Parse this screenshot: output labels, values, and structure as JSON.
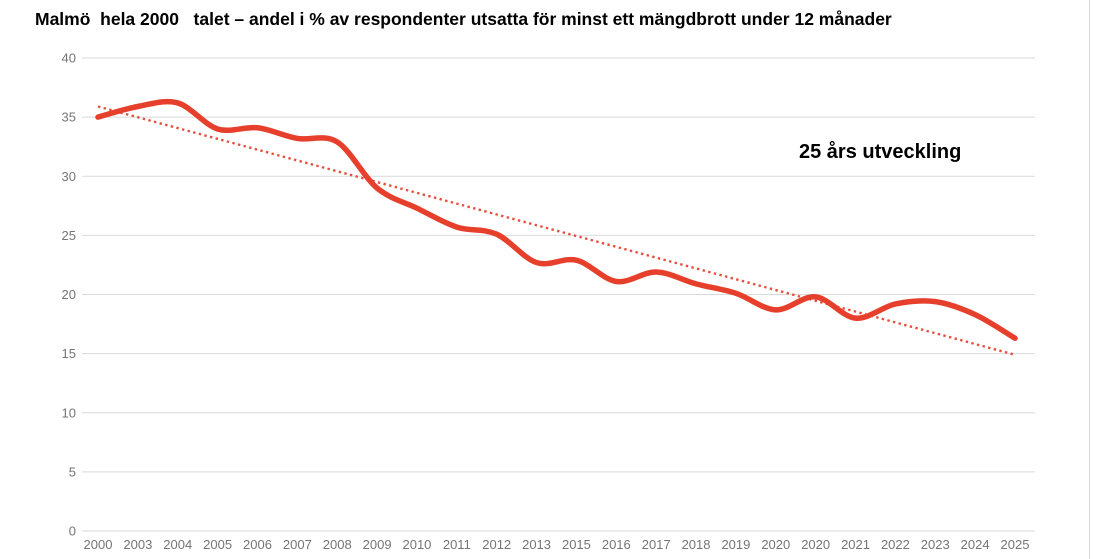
{
  "page": {
    "title": "Malmö  hela 2000   talet – andel i % av respondenter utsatta för minst ett mängdbrott under 12 månader"
  },
  "annotation": {
    "label": "25 års utveckling"
  },
  "colors": {
    "series": "#e6402d",
    "trend": "#e6402d",
    "grid": "#d9d9d9",
    "axis_text": "#757575",
    "title_text": "#000000"
  },
  "chart_data": {
    "type": "line",
    "title": "Malmö  hela 2000   talet – andel i % av respondenter utsatta för minst ett mängdbrott under 12 månader",
    "annotation": "25 års utveckling",
    "xlabel": "",
    "ylabel": "",
    "ylim": [
      0,
      40
    ],
    "yticks": [
      0,
      5,
      10,
      15,
      20,
      25,
      30,
      35,
      40
    ],
    "grid": true,
    "legend_position": "none",
    "categories": [
      "2000",
      "2003",
      "2004",
      "2005",
      "2006",
      "2007",
      "2008",
      "2009",
      "2010",
      "2011",
      "2012",
      "2013",
      "2015",
      "2016",
      "2017",
      "2018",
      "2019",
      "2020",
      "2020",
      "2021",
      "2022",
      "2023",
      "2024",
      "2025"
    ],
    "series": [
      {
        "name": "main",
        "style": "solid-smooth",
        "values": [
          35.0,
          35.9,
          36.2,
          34.0,
          34.1,
          33.2,
          32.9,
          29.0,
          27.3,
          25.7,
          25.1,
          22.7,
          22.9,
          21.1,
          21.9,
          20.9,
          20.1,
          18.7,
          19.8,
          18.0,
          19.2,
          19.4,
          18.3,
          16.3
        ]
      },
      {
        "name": "trend",
        "style": "dotted-straight",
        "endpoints": [
          35.9,
          14.9
        ]
      }
    ]
  }
}
